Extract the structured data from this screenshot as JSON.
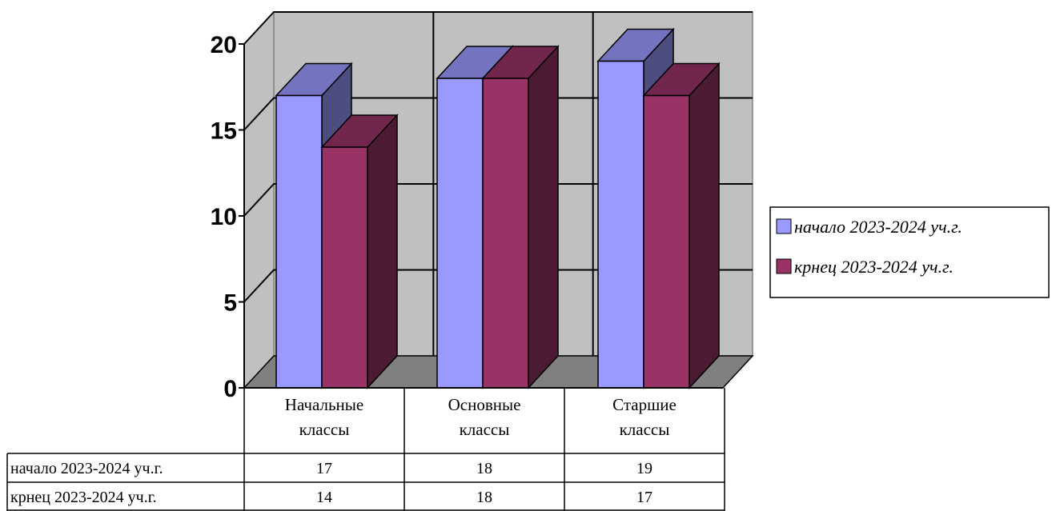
{
  "chart_data": {
    "type": "bar",
    "style": "3d-clustered-column",
    "categories": [
      [
        "Начальные",
        "классы"
      ],
      [
        "Основные",
        "классы"
      ],
      [
        "Старшие",
        "классы"
      ]
    ],
    "series": [
      {
        "name": "начало 2023-2024 уч.г.",
        "values": [
          17,
          18,
          19
        ],
        "color": "#9999ff"
      },
      {
        "name": "крнец 2023-2024 уч.г.",
        "values": [
          14,
          18,
          17
        ],
        "color": "#993366"
      }
    ],
    "ylim": [
      0,
      20
    ],
    "yticks": [
      0,
      5,
      10,
      15,
      20
    ],
    "grid": true,
    "legend": "right",
    "data_table": true,
    "colors": {
      "wall": "#c0c0c0",
      "floor": "#808080"
    }
  }
}
